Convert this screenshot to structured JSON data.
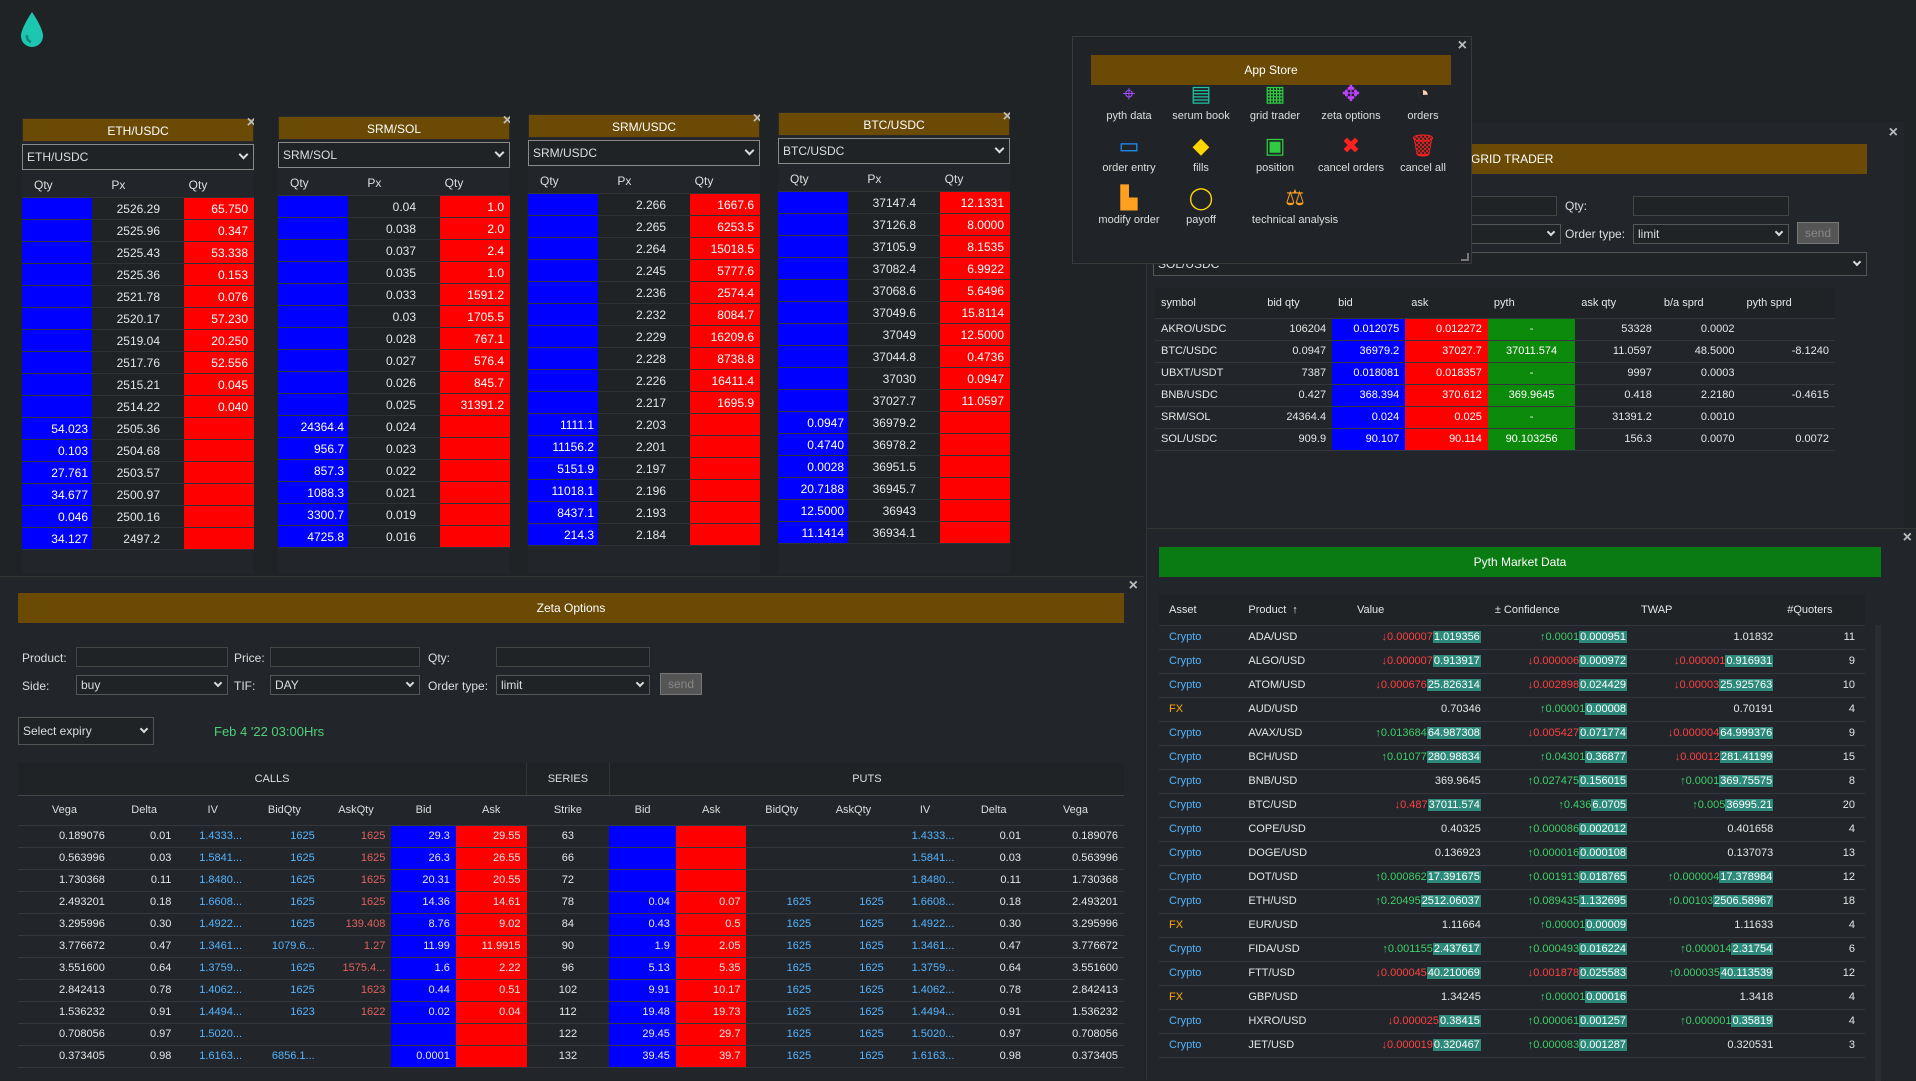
{
  "app": {
    "logo": "droplet-icon"
  },
  "orderbooks": [
    {
      "title": "ETH/USDC",
      "pair": "ETH/USDC",
      "headers": [
        "Qty",
        "Px",
        "Qty"
      ],
      "rows": [
        [
          "",
          "2526.29",
          "65.750"
        ],
        [
          "",
          "2525.96",
          "0.347"
        ],
        [
          "",
          "2525.43",
          "53.338"
        ],
        [
          "",
          "2525.36",
          "0.153"
        ],
        [
          "",
          "2521.78",
          "0.076"
        ],
        [
          "",
          "2520.17",
          "57.230"
        ],
        [
          "",
          "2519.04",
          "20.250"
        ],
        [
          "",
          "2517.76",
          "52.556"
        ],
        [
          "",
          "2515.21",
          "0.045"
        ],
        [
          "",
          "2514.22",
          "0.040"
        ],
        [
          "54.023",
          "2505.36",
          ""
        ],
        [
          "0.103",
          "2504.68",
          ""
        ],
        [
          "27.761",
          "2503.57",
          ""
        ],
        [
          "34.677",
          "2500.97",
          ""
        ],
        [
          "0.046",
          "2500.16",
          ""
        ],
        [
          "34.127",
          "2497.2",
          ""
        ]
      ]
    },
    {
      "title": "SRM/SOL",
      "pair": "SRM/SOL",
      "headers": [
        "Qty",
        "Px",
        "Qty"
      ],
      "rows": [
        [
          "",
          "0.04",
          "1.0"
        ],
        [
          "",
          "0.038",
          "2.0"
        ],
        [
          "",
          "0.037",
          "2.4"
        ],
        [
          "",
          "0.035",
          "1.0"
        ],
        [
          "",
          "0.033",
          "1591.2"
        ],
        [
          "",
          "0.03",
          "1705.5"
        ],
        [
          "",
          "0.028",
          "767.1"
        ],
        [
          "",
          "0.027",
          "576.4"
        ],
        [
          "",
          "0.026",
          "845.7"
        ],
        [
          "",
          "0.025",
          "31391.2"
        ],
        [
          "24364.4",
          "0.024",
          ""
        ],
        [
          "956.7",
          "0.023",
          ""
        ],
        [
          "857.3",
          "0.022",
          ""
        ],
        [
          "1088.3",
          "0.021",
          ""
        ],
        [
          "3300.7",
          "0.019",
          ""
        ],
        [
          "4725.8",
          "0.016",
          ""
        ]
      ]
    },
    {
      "title": "SRM/USDC",
      "pair": "SRM/USDC",
      "headers": [
        "Qty",
        "Px",
        "Qty"
      ],
      "rows": [
        [
          "",
          "2.266",
          "1667.6"
        ],
        [
          "",
          "2.265",
          "6253.5"
        ],
        [
          "",
          "2.264",
          "15018.5"
        ],
        [
          "",
          "2.245",
          "5777.6"
        ],
        [
          "",
          "2.236",
          "2574.4"
        ],
        [
          "",
          "2.232",
          "8084.7"
        ],
        [
          "",
          "2.229",
          "16209.6"
        ],
        [
          "",
          "2.228",
          "8738.8"
        ],
        [
          "",
          "2.226",
          "16411.4"
        ],
        [
          "",
          "2.217",
          "1695.9"
        ],
        [
          "1111.1",
          "2.203",
          ""
        ],
        [
          "11156.2",
          "2.201",
          ""
        ],
        [
          "5151.9",
          "2.197",
          ""
        ],
        [
          "11018.1",
          "2.196",
          ""
        ],
        [
          "8437.1",
          "2.193",
          ""
        ],
        [
          "214.3",
          "2.184",
          ""
        ]
      ]
    },
    {
      "title": "BTC/USDC",
      "pair": "BTC/USDC",
      "headers": [
        "Qty",
        "Px",
        "Qty"
      ],
      "rows": [
        [
          "",
          "37147.4",
          "12.1331"
        ],
        [
          "",
          "37126.8",
          "8.0000"
        ],
        [
          "",
          "37105.9",
          "8.1535"
        ],
        [
          "",
          "37082.4",
          "6.9922"
        ],
        [
          "",
          "37068.6",
          "5.6496"
        ],
        [
          "",
          "37049.6",
          "15.8114"
        ],
        [
          "",
          "37049",
          "12.5000"
        ],
        [
          "",
          "37044.8",
          "0.4736"
        ],
        [
          "",
          "37030",
          "0.0947"
        ],
        [
          "",
          "37027.7",
          "11.0597"
        ],
        [
          "0.0947",
          "36979.2",
          ""
        ],
        [
          "0.4740",
          "36978.2",
          ""
        ],
        [
          "0.0028",
          "36951.5",
          ""
        ],
        [
          "20.7188",
          "36945.7",
          ""
        ],
        [
          "12.5000",
          "36943",
          ""
        ],
        [
          "11.1414",
          "36934.1",
          ""
        ]
      ]
    }
  ],
  "app_store": {
    "title": "App Store",
    "items": [
      {
        "label": "pyth data",
        "icon": "pyth-data-icon",
        "glyph": "⌖",
        "color": "#a64dff"
      },
      {
        "label": "serum book",
        "icon": "serum-book-icon",
        "glyph": "▤",
        "color": "#20c0a0"
      },
      {
        "label": "grid trader",
        "icon": "grid-trader-icon",
        "glyph": "▦",
        "color": "#2ecc40"
      },
      {
        "label": "zeta options",
        "icon": "zeta-options-icon",
        "glyph": "✥",
        "color": "#c040ff"
      },
      {
        "label": "orders",
        "icon": "orders-icon",
        "glyph": "◔",
        "color": "#ffd0b0"
      },
      {
        "label": "order entry",
        "icon": "order-entry-icon",
        "glyph": "▭",
        "color": "#1e90ff"
      },
      {
        "label": "fills",
        "icon": "fills-icon",
        "glyph": "◆",
        "color": "#ffd700"
      },
      {
        "label": "position",
        "icon": "position-icon",
        "glyph": "▣",
        "color": "#2ecc40"
      },
      {
        "label": "cancel orders",
        "icon": "cancel-orders-icon",
        "glyph": "✖",
        "color": "#ff2020"
      },
      {
        "label": "cancel all",
        "icon": "cancel-all-icon",
        "glyph": "🗑",
        "color": "#ff2020"
      },
      {
        "label": "modify order",
        "icon": "modify-order-icon",
        "glyph": "▙",
        "color": "#ffa020"
      },
      {
        "label": "payoff",
        "icon": "payoff-icon",
        "glyph": "◯",
        "color": "#ffd700"
      },
      {
        "label": "technical analysis",
        "icon": "technical-analysis-icon",
        "glyph": "⚖",
        "color": "#ffa020"
      }
    ]
  },
  "grid_trader": {
    "title": "GRID TRADER",
    "qty_label": "Qty:",
    "order_type_label": "Order type:",
    "order_type_value": "limit",
    "send_label": "send",
    "symbol_select": "SOL/USDC",
    "headers": [
      "symbol",
      "bid qty",
      "bid",
      "ask",
      "pyth",
      "ask qty",
      "b/a sprd",
      "pyth sprd"
    ],
    "rows": [
      [
        "AKRO/USDC",
        "106204",
        "0.012075",
        "0.012272",
        "-",
        "53328",
        "0.0002",
        ""
      ],
      [
        "BTC/USDC",
        "0.0947",
        "36979.2",
        "37027.7",
        "37011.574",
        "11.0597",
        "48.5000",
        "-8.1240"
      ],
      [
        "UBXT/USDT",
        "7387",
        "0.018081",
        "0.018357",
        "-",
        "9997",
        "0.0003",
        ""
      ],
      [
        "BNB/USDC",
        "0.427",
        "368.394",
        "370.612",
        "369.9645",
        "0.418",
        "2.2180",
        "-0.4615"
      ],
      [
        "SRM/SOL",
        "24364.4",
        "0.024",
        "0.025",
        "-",
        "31391.2",
        "0.0010",
        ""
      ],
      [
        "SOL/USDC",
        "909.9",
        "90.107",
        "90.114",
        "90.103256",
        "156.3",
        "0.0070",
        "0.0072"
      ]
    ]
  },
  "zeta": {
    "title": "Zeta Options",
    "product_label": "Product:",
    "price_label": "Price:",
    "qty_label": "Qty:",
    "side_label": "Side:",
    "side_value": "buy",
    "tif_label": "TIF:",
    "tif_value": "DAY",
    "order_type_label": "Order type:",
    "order_type_value": "limit",
    "send_label": "send",
    "expiry_select": "Select expiry",
    "expiry_date": "Feb 4 '22 03:00Hrs",
    "calls_label": "CALLS",
    "series_label": "SERIES",
    "puts_label": "PUTS",
    "headers": [
      "Vega",
      "Delta",
      "IV",
      "BidQty",
      "AskQty",
      "Bid",
      "Ask",
      "Strike",
      "Bid",
      "Ask",
      "BidQty",
      "AskQty",
      "IV",
      "Delta",
      "Vega"
    ],
    "rows": [
      [
        "0.189076",
        "0.01",
        "1.4333...",
        "1625",
        "1625",
        "29.3",
        "29.55",
        "63",
        "",
        "",
        "",
        "",
        "1.4333...",
        "0.01",
        "0.189076"
      ],
      [
        "0.563996",
        "0.03",
        "1.5841...",
        "1625",
        "1625",
        "26.3",
        "26.55",
        "66",
        "",
        "",
        "",
        "",
        "1.5841...",
        "0.03",
        "0.563996"
      ],
      [
        "1.730368",
        "0.11",
        "1.8480...",
        "1625",
        "1625",
        "20.31",
        "20.55",
        "72",
        "",
        "",
        "",
        "",
        "1.8480...",
        "0.11",
        "1.730368"
      ],
      [
        "2.493201",
        "0.18",
        "1.6608...",
        "1625",
        "1625",
        "14.36",
        "14.61",
        "78",
        "0.04",
        "0.07",
        "1625",
        "1625",
        "1.6608...",
        "0.18",
        "2.493201"
      ],
      [
        "3.295996",
        "0.30",
        "1.4922...",
        "1625",
        "139.408",
        "8.76",
        "9.02",
        "84",
        "0.43",
        "0.5",
        "1625",
        "1625",
        "1.4922...",
        "0.30",
        "3.295996"
      ],
      [
        "3.776672",
        "0.47",
        "1.3461...",
        "1079.6...",
        "1.27",
        "11.99",
        "11.9915",
        "90",
        "1.9",
        "2.05",
        "1625",
        "1625",
        "1.3461...",
        "0.47",
        "3.776672"
      ],
      [
        "3.551600",
        "0.64",
        "1.3759...",
        "1625",
        "1575.4...",
        "1.6",
        "2.22",
        "96",
        "5.13",
        "5.35",
        "1625",
        "1625",
        "1.3759...",
        "0.64",
        "3.551600"
      ],
      [
        "2.842413",
        "0.78",
        "1.4062...",
        "1625",
        "1623",
        "0.44",
        "0.51",
        "102",
        "9.91",
        "10.17",
        "1625",
        "1625",
        "1.4062...",
        "0.78",
        "2.842413"
      ],
      [
        "1.536232",
        "0.91",
        "1.4494...",
        "1623",
        "1622",
        "0.02",
        "0.04",
        "112",
        "19.48",
        "19.73",
        "1625",
        "1625",
        "1.4494...",
        "0.91",
        "1.536232"
      ],
      [
        "0.708056",
        "0.97",
        "1.5020...",
        "",
        "",
        "",
        "",
        "122",
        "29.45",
        "29.7",
        "1625",
        "1625",
        "1.5020...",
        "0.97",
        "0.708056"
      ],
      [
        "0.373405",
        "0.98",
        "1.6163...",
        "6856.1...",
        "",
        "0.0001",
        "",
        "132",
        "39.45",
        "39.7",
        "1625",
        "1625",
        "1.6163...",
        "0.98",
        "0.373405"
      ]
    ]
  },
  "pyth": {
    "title": "Pyth Market Data",
    "headers": [
      "Asset",
      "Product",
      "Value",
      "± Confidence",
      "TWAP",
      "#Quoters"
    ],
    "sort_indicator": "↑",
    "rows": [
      {
        "asset": "Crypto",
        "product": "ADA/USD",
        "vch": "↓0.000007",
        "vdir": "dn",
        "value": "1.019356",
        "vhl": true,
        "cch": "↑0.0001",
        "cdir": "up",
        "conf": "0.000951",
        "chl": true,
        "tch": "",
        "tdir": "",
        "twap": "1.01832",
        "thl": false,
        "q": "11"
      },
      {
        "asset": "Crypto",
        "product": "ALGO/USD",
        "vch": "↓0.000007",
        "vdir": "dn",
        "value": "0.913917",
        "vhl": true,
        "cch": "↓0.000006",
        "cdir": "dn",
        "conf": "0.000972",
        "chl": true,
        "tch": "↓0.000001",
        "tdir": "dn",
        "twap": "0.916931",
        "thl": true,
        "q": "9"
      },
      {
        "asset": "Crypto",
        "product": "ATOM/USD",
        "vch": "↓0.000676",
        "vdir": "dn",
        "value": "25.826314",
        "vhl": true,
        "cch": "↓0.002898",
        "cdir": "dn",
        "conf": "0.024429",
        "chl": true,
        "tch": "↓0.00003",
        "tdir": "dn",
        "twap": "25.925763",
        "thl": true,
        "q": "10"
      },
      {
        "asset": "FX",
        "product": "AUD/USD",
        "vch": "",
        "vdir": "",
        "value": "0.70346",
        "vhl": false,
        "cch": "↑0.00001",
        "cdir": "up",
        "conf": "0.00008",
        "chl": true,
        "tch": "",
        "tdir": "",
        "twap": "0.70191",
        "thl": false,
        "q": "4"
      },
      {
        "asset": "Crypto",
        "product": "AVAX/USD",
        "vch": "↑0.013684",
        "vdir": "up",
        "value": "64.987308",
        "vhl": true,
        "cch": "↓0.005427",
        "cdir": "dn",
        "conf": "0.071774",
        "chl": true,
        "tch": "↓0.000004",
        "tdir": "dn",
        "twap": "64.999376",
        "thl": true,
        "q": "9"
      },
      {
        "asset": "Crypto",
        "product": "BCH/USD",
        "vch": "↑0.01077",
        "vdir": "up",
        "value": "280.98834",
        "vhl": true,
        "cch": "↑0.04301",
        "cdir": "up",
        "conf": "0.36877",
        "chl": true,
        "tch": "↓0.00012",
        "tdir": "dn",
        "twap": "281.41199",
        "thl": true,
        "q": "15"
      },
      {
        "asset": "Crypto",
        "product": "BNB/USD",
        "vch": "",
        "vdir": "",
        "value": "369.9645",
        "vhl": false,
        "cch": "↑0.027475",
        "cdir": "up",
        "conf": "0.156015",
        "chl": true,
        "tch": "↑0.0001",
        "tdir": "up",
        "twap": "369.75575",
        "thl": true,
        "q": "8"
      },
      {
        "asset": "Crypto",
        "product": "BTC/USD",
        "vch": "↓0.487",
        "vdir": "dn",
        "value": "37011.574",
        "vhl": true,
        "cch": "↑0.436",
        "cdir": "up",
        "conf": "6.0705",
        "chl": true,
        "tch": "↑0.005",
        "tdir": "up",
        "twap": "36995.21",
        "thl": true,
        "q": "20"
      },
      {
        "asset": "Crypto",
        "product": "COPE/USD",
        "vch": "",
        "vdir": "",
        "value": "0.40325",
        "vhl": false,
        "cch": "↑0.000086",
        "cdir": "up",
        "conf": "0.002012",
        "chl": true,
        "tch": "",
        "tdir": "",
        "twap": "0.401658",
        "thl": false,
        "q": "4"
      },
      {
        "asset": "Crypto",
        "product": "DOGE/USD",
        "vch": "",
        "vdir": "",
        "value": "0.136923",
        "vhl": false,
        "cch": "↑0.000016",
        "cdir": "up",
        "conf": "0.000108",
        "chl": true,
        "tch": "",
        "tdir": "",
        "twap": "0.137073",
        "thl": false,
        "q": "13"
      },
      {
        "asset": "Crypto",
        "product": "DOT/USD",
        "vch": "↑0.000862",
        "vdir": "up",
        "value": "17.391675",
        "vhl": true,
        "cch": "↑0.001913",
        "cdir": "up",
        "conf": "0.018765",
        "chl": true,
        "tch": "↑0.000004",
        "tdir": "up",
        "twap": "17.378984",
        "thl": true,
        "q": "12"
      },
      {
        "asset": "Crypto",
        "product": "ETH/USD",
        "vch": "↑0.20495",
        "vdir": "up",
        "value": "2512.06037",
        "vhl": true,
        "cch": "↑0.089435",
        "cdir": "up",
        "conf": "1.132695",
        "chl": true,
        "tch": "↑0.00103",
        "tdir": "up",
        "twap": "2506.58967",
        "thl": true,
        "q": "18"
      },
      {
        "asset": "FX",
        "product": "EUR/USD",
        "vch": "",
        "vdir": "",
        "value": "1.11664",
        "vhl": false,
        "cch": "↑0.00001",
        "cdir": "up",
        "conf": "0.00009",
        "chl": true,
        "tch": "",
        "tdir": "",
        "twap": "1.11633",
        "thl": false,
        "q": "4"
      },
      {
        "asset": "Crypto",
        "product": "FIDA/USD",
        "vch": "↑0.001155",
        "vdir": "up",
        "value": "2.437617",
        "vhl": true,
        "cch": "↑0.000493",
        "cdir": "up",
        "conf": "0.016224",
        "chl": true,
        "tch": "↑0.000014",
        "tdir": "up",
        "twap": "2.31754",
        "thl": true,
        "q": "6"
      },
      {
        "asset": "Crypto",
        "product": "FTT/USD",
        "vch": "↓0.000045",
        "vdir": "dn",
        "value": "40.210069",
        "vhl": true,
        "cch": "↓0.001878",
        "cdir": "dn",
        "conf": "0.025583",
        "chl": true,
        "tch": "↑0.000035",
        "tdir": "up",
        "twap": "40.113539",
        "thl": true,
        "q": "12"
      },
      {
        "asset": "FX",
        "product": "GBP/USD",
        "vch": "",
        "vdir": "",
        "value": "1.34245",
        "vhl": false,
        "cch": "↑0.00001",
        "cdir": "up",
        "conf": "0.00016",
        "chl": true,
        "tch": "",
        "tdir": "",
        "twap": "1.3418",
        "thl": false,
        "q": "4"
      },
      {
        "asset": "Crypto",
        "product": "HXRO/USD",
        "vch": "↓0.000025",
        "vdir": "dn",
        "value": "0.38415",
        "vhl": true,
        "cch": "↑0.000061",
        "cdir": "up",
        "conf": "0.001257",
        "chl": true,
        "tch": "↑0.000001",
        "tdir": "up",
        "twap": "0.35819",
        "thl": true,
        "q": "4"
      },
      {
        "asset": "Crypto",
        "product": "JET/USD",
        "vch": "↓0.000019",
        "vdir": "dn",
        "value": "0.320467",
        "vhl": true,
        "cch": "↑0.000083",
        "cdir": "up",
        "conf": "0.001287",
        "chl": true,
        "tch": "",
        "tdir": "",
        "twap": "0.320531",
        "thl": false,
        "q": "3"
      }
    ]
  }
}
